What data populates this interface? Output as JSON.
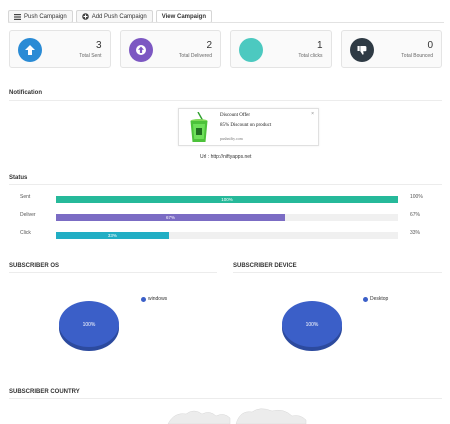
{
  "tabs": [
    {
      "label": "Push Campaign",
      "icon": "list-icon"
    },
    {
      "label": "Add Push Campaign",
      "icon": "plus-circle-icon"
    },
    {
      "label": "View Campaign",
      "icon": ""
    }
  ],
  "stats": [
    {
      "value": "3",
      "label": "Total Sent",
      "color": "#2a8bd5",
      "icon": "arrow-up-icon"
    },
    {
      "value": "2",
      "label": "Total Delivered",
      "color": "#7c57c2",
      "icon": "arrow-up-circle-icon"
    },
    {
      "value": "1",
      "label": "Total clicks",
      "color": "#4cc9c0",
      "icon": ""
    },
    {
      "value": "0",
      "label": "Total Bounced",
      "color": "#2e3a44",
      "icon": "thumbs-down-icon"
    }
  ],
  "notification": {
    "section_title": "Notification",
    "title": "Discount Offer",
    "message": "85% Discount on product",
    "domain": "pushnifty.com",
    "close": "×",
    "url_label": "Url :",
    "url_value": "http://niftyapps.net"
  },
  "status": {
    "section_title": "Status",
    "rows": [
      {
        "name": "Sent",
        "value": 100,
        "bar_label": "100%",
        "pct_label": "100%",
        "color": "#26b99a"
      },
      {
        "name": "Deliver",
        "value": 67,
        "bar_label": "67%",
        "pct_label": "67%",
        "color": "#7b6cc4"
      },
      {
        "name": "Click",
        "value": 33,
        "bar_label": "33%",
        "pct_label": "33%",
        "color": "#21aec4"
      }
    ]
  },
  "os_chart": {
    "title": "SUBSCRIBER OS",
    "chart_data": {
      "type": "pie",
      "categories": [
        "windows"
      ],
      "values": [
        100
      ],
      "slice_label": "100%",
      "color": "#3b5fc8"
    }
  },
  "device_chart": {
    "title": "SUBSCRIBER DEVICE",
    "chart_data": {
      "type": "pie",
      "categories": [
        "Desktop"
      ],
      "values": [
        100
      ],
      "slice_label": "100%",
      "color": "#3b5fc8"
    }
  },
  "country": {
    "section_title": "SUBSCRIBER COUNTRY"
  }
}
